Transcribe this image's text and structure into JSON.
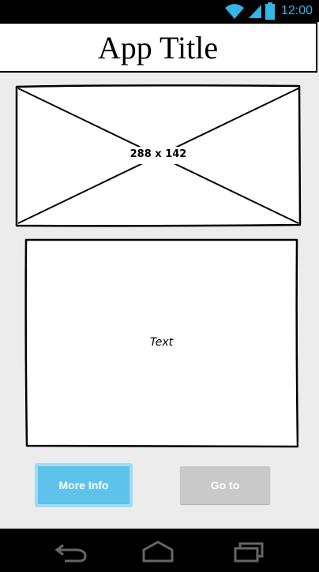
{
  "status_bar": {
    "time": "12:00",
    "icons": [
      "wifi-icon",
      "signal-icon",
      "battery-icon"
    ],
    "accent_color": "#33b5e5"
  },
  "app_bar": {
    "title": "App Title"
  },
  "image_placeholder": {
    "label": "288 x 142"
  },
  "text_box": {
    "label": "Text"
  },
  "buttons": {
    "more_info": "More Info",
    "goto": "Go to",
    "more_info_color": "#5ec2ea",
    "goto_color": "#c9c9c9"
  },
  "nav_bar": {
    "icons": [
      "back-icon",
      "home-icon",
      "recents-icon"
    ]
  }
}
